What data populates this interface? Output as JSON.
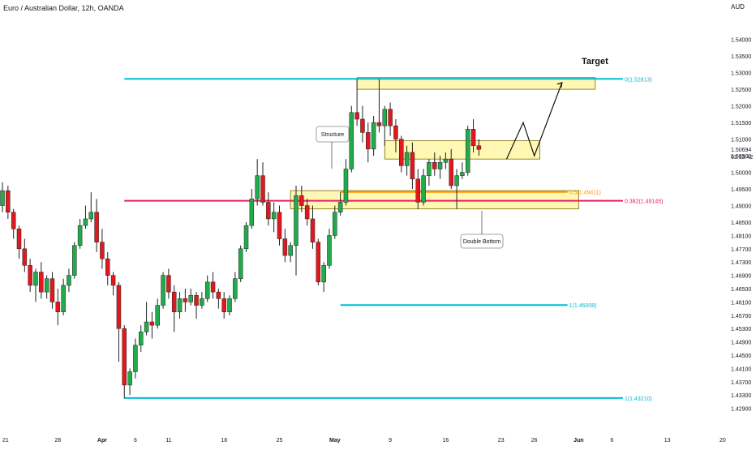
{
  "header": {
    "title": "Euro / Australian Dollar, 12h, OANDA",
    "currency": "AUD"
  },
  "chart_data": {
    "type": "candlestick",
    "title": "Euro / Australian Dollar, 12h, OANDA",
    "y_axis": {
      "min": 1.425,
      "max": 1.546,
      "unit": "AUD",
      "ticks": [
        "1.54000",
        "1.53500",
        "1.53000",
        "1.52500",
        "1.52000",
        "1.51500",
        "1.51000",
        "1.50500",
        "1.50000",
        "1.49500",
        "1.49000",
        "1.48500",
        "1.48100",
        "1.47700",
        "1.47300",
        "1.46900",
        "1.46500",
        "1.46100",
        "1.45700",
        "1.45300",
        "1.44900",
        "1.44500",
        "1.44100",
        "1.43700",
        "1.43300",
        "1.42900"
      ]
    },
    "x_axis": {
      "ticks": [
        {
          "label": "21",
          "bar": 0
        },
        {
          "label": "28",
          "bar": 10
        },
        {
          "label": "Apr",
          "bar": 18,
          "bold": true
        },
        {
          "label": "6",
          "bar": 24
        },
        {
          "label": "11",
          "bar": 30
        },
        {
          "label": "18",
          "bar": 40
        },
        {
          "label": "25",
          "bar": 50
        },
        {
          "label": "May",
          "bar": 60,
          "bold": true
        },
        {
          "label": "9",
          "bar": 70
        },
        {
          "label": "16",
          "bar": 80
        },
        {
          "label": "23",
          "bar": 90
        },
        {
          "label": "26",
          "bar": 96
        },
        {
          "label": "Jun",
          "bar": 104,
          "bold": true
        },
        {
          "label": "6",
          "bar": 110
        },
        {
          "label": "13",
          "bar": 120
        },
        {
          "label": "20",
          "bar": 130
        }
      ]
    },
    "last_price": {
      "value": "1.50694",
      "countdown": "03:13:42"
    },
    "candles": [
      [
        1.49,
        1.497,
        1.488,
        1.4945
      ],
      [
        1.4945,
        1.496,
        1.486,
        1.488
      ],
      [
        1.488,
        1.489,
        1.48,
        1.483
      ],
      [
        1.483,
        1.484,
        1.474,
        1.477
      ],
      [
        1.477,
        1.48,
        1.47,
        1.472
      ],
      [
        1.472,
        1.474,
        1.464,
        1.466
      ],
      [
        1.466,
        1.471,
        1.461,
        1.47
      ],
      [
        1.47,
        1.473,
        1.462,
        1.464
      ],
      [
        1.464,
        1.469,
        1.462,
        1.468
      ],
      [
        1.468,
        1.47,
        1.459,
        1.461
      ],
      [
        1.461,
        1.465,
        1.454,
        1.458
      ],
      [
        1.458,
        1.468,
        1.457,
        1.466
      ],
      [
        1.466,
        1.471,
        1.464,
        1.469
      ],
      [
        1.469,
        1.479,
        1.468,
        1.478
      ],
      [
        1.478,
        1.486,
        1.477,
        1.484
      ],
      [
        1.484,
        1.49,
        1.483,
        1.486
      ],
      [
        1.486,
        1.494,
        1.485,
        1.488
      ],
      [
        1.488,
        1.492,
        1.476,
        1.479
      ],
      [
        1.479,
        1.483,
        1.471,
        1.474
      ],
      [
        1.474,
        1.476,
        1.466,
        1.469
      ],
      [
        1.469,
        1.47,
        1.463,
        1.466
      ],
      [
        1.466,
        1.467,
        1.443,
        1.453
      ],
      [
        1.453,
        1.454,
        1.432,
        1.436
      ],
      [
        1.436,
        1.441,
        1.433,
        1.44
      ],
      [
        1.44,
        1.45,
        1.438,
        1.448
      ],
      [
        1.448,
        1.454,
        1.446,
        1.452
      ],
      [
        1.452,
        1.461,
        1.451,
        1.455
      ],
      [
        1.455,
        1.458,
        1.45,
        1.454
      ],
      [
        1.454,
        1.462,
        1.453,
        1.46
      ],
      [
        1.46,
        1.47,
        1.459,
        1.469
      ],
      [
        1.469,
        1.471,
        1.462,
        1.464
      ],
      [
        1.464,
        1.466,
        1.452,
        1.458
      ],
      [
        1.458,
        1.464,
        1.456,
        1.462
      ],
      [
        1.462,
        1.465,
        1.458,
        1.461
      ],
      [
        1.461,
        1.465,
        1.46,
        1.463
      ],
      [
        1.463,
        1.464,
        1.456,
        1.46
      ],
      [
        1.46,
        1.464,
        1.459,
        1.462
      ],
      [
        1.462,
        1.469,
        1.461,
        1.467
      ],
      [
        1.467,
        1.47,
        1.462,
        1.464
      ],
      [
        1.464,
        1.465,
        1.459,
        1.462
      ],
      [
        1.462,
        1.464,
        1.456,
        1.458
      ],
      [
        1.458,
        1.463,
        1.457,
        1.462
      ],
      [
        1.462,
        1.47,
        1.461,
        1.468
      ],
      [
        1.468,
        1.478,
        1.467,
        1.477
      ],
      [
        1.477,
        1.485,
        1.476,
        1.484
      ],
      [
        1.484,
        1.495,
        1.483,
        1.492
      ],
      [
        1.492,
        1.504,
        1.49,
        1.499
      ],
      [
        1.499,
        1.503,
        1.49,
        1.491
      ],
      [
        1.491,
        1.494,
        1.484,
        1.486
      ],
      [
        1.486,
        1.491,
        1.482,
        1.488
      ],
      [
        1.488,
        1.49,
        1.478,
        1.48
      ],
      [
        1.48,
        1.483,
        1.473,
        1.475
      ],
      [
        1.475,
        1.479,
        1.473,
        1.478
      ],
      [
        1.478,
        1.496,
        1.469,
        1.493
      ],
      [
        1.493,
        1.496,
        1.488,
        1.49
      ],
      [
        1.49,
        1.492,
        1.484,
        1.486
      ],
      [
        1.486,
        1.49,
        1.477,
        1.479
      ],
      [
        1.479,
        1.48,
        1.466,
        1.467
      ],
      [
        1.467,
        1.473,
        1.464,
        1.472
      ],
      [
        1.472,
        1.483,
        1.471,
        1.481
      ],
      [
        1.481,
        1.49,
        1.48,
        1.488
      ],
      [
        1.488,
        1.494,
        1.487,
        1.491
      ],
      [
        1.491,
        1.504,
        1.49,
        1.501
      ],
      [
        1.501,
        1.52,
        1.5,
        1.518
      ],
      [
        1.518,
        1.528,
        1.514,
        1.516
      ],
      [
        1.516,
        1.52,
        1.509,
        1.512
      ],
      [
        1.512,
        1.515,
        1.503,
        1.507
      ],
      [
        1.507,
        1.517,
        1.505,
        1.515
      ],
      [
        1.515,
        1.528,
        1.512,
        1.514
      ],
      [
        1.514,
        1.52,
        1.508,
        1.519
      ],
      [
        1.519,
        1.521,
        1.511,
        1.514
      ],
      [
        1.514,
        1.516,
        1.506,
        1.51
      ],
      [
        1.51,
        1.511,
        1.5,
        1.502
      ],
      [
        1.502,
        1.508,
        1.499,
        1.506
      ],
      [
        1.506,
        1.509,
        1.495,
        1.498
      ],
      [
        1.498,
        1.501,
        1.489,
        1.491
      ],
      [
        1.491,
        1.501,
        1.49,
        1.499
      ],
      [
        1.499,
        1.504,
        1.496,
        1.503
      ],
      [
        1.503,
        1.506,
        1.499,
        1.501
      ],
      [
        1.501,
        1.505,
        1.498,
        1.503
      ],
      [
        1.503,
        1.506,
        1.501,
        1.504
      ],
      [
        1.504,
        1.507,
        1.495,
        1.496
      ],
      [
        1.496,
        1.501,
        1.489,
        1.499
      ],
      [
        1.499,
        1.503,
        1.498,
        1.5
      ],
      [
        1.5,
        1.514,
        1.499,
        1.513
      ],
      [
        1.513,
        1.516,
        1.506,
        1.508
      ],
      [
        1.508,
        1.51,
        1.505,
        1.5069
      ]
    ],
    "levels": [
      {
        "name": "fib-top",
        "price": 1.52813,
        "label": "0(1.52813)",
        "color": "#00bcd4",
        "from_bar": 22,
        "to_bar": 112
      },
      {
        "name": "fib-mid",
        "price": 1.49145,
        "label": "0.382(1.49145)",
        "color": "#e91e63",
        "from_bar": 22,
        "to_bar": 112
      },
      {
        "name": "fib-half",
        "price": 1.49411,
        "label": "0.5(1.49411)",
        "color": "#ff9800",
        "from_bar": 61,
        "to_bar": 102
      },
      {
        "name": "fib-one",
        "price": 1.46008,
        "label": "1(1.46008)",
        "color": "#00bcd4",
        "from_bar": 61,
        "to_bar": 102
      },
      {
        "name": "fib-low",
        "price": 1.4321,
        "label": "1(1.43210)",
        "color": "#00bcd4",
        "from_bar": 22,
        "to_bar": 112
      }
    ],
    "zones": [
      {
        "name": "target-zone",
        "from_bar": 64,
        "to_bar": 107,
        "top": 1.5285,
        "bottom": 1.525
      },
      {
        "name": "resistance-zone",
        "from_bar": 69,
        "to_bar": 97,
        "top": 1.5095,
        "bottom": 1.504
      },
      {
        "name": "support-zone",
        "from_bar": 52,
        "to_bar": 104,
        "top": 1.4945,
        "bottom": 1.489
      }
    ],
    "annotations": {
      "target": "Target",
      "structure": "Structure",
      "double_bottom": "Double Bottom"
    },
    "projection": [
      [
        91,
        1.504
      ],
      [
        94,
        1.515
      ],
      [
        96,
        1.505
      ],
      [
        101,
        1.527
      ]
    ]
  }
}
